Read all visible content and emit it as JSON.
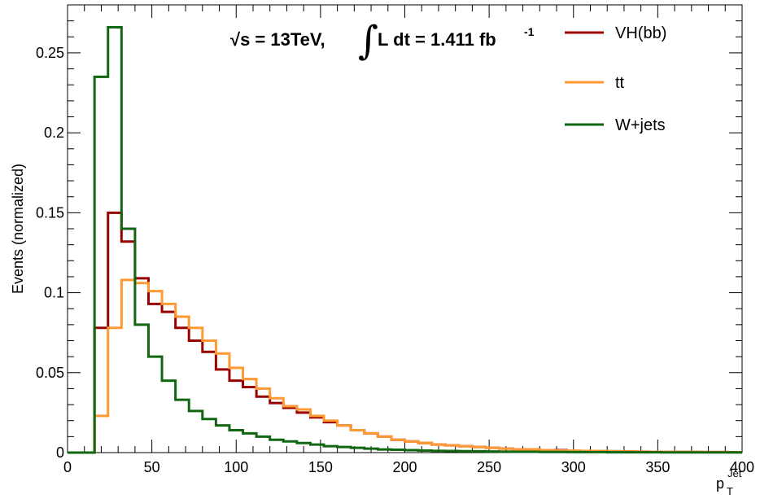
{
  "chart_data": {
    "type": "line",
    "title": "",
    "ylabel": "Events (normalized)",
    "xlabel": {
      "base": "p",
      "superscript": "Jet",
      "subscript": "T"
    },
    "xlim": [
      0,
      400
    ],
    "ylim": [
      0,
      0.28
    ],
    "grid": false,
    "legend_position": "top-right",
    "bin_edges": [
      0,
      8,
      16,
      24,
      32,
      40,
      48,
      56,
      64,
      72,
      80,
      88,
      96,
      104,
      112,
      120,
      128,
      136,
      144,
      152,
      160,
      168,
      176,
      184,
      192,
      200,
      208,
      216,
      224,
      232,
      240,
      248,
      256,
      264,
      272,
      280,
      288,
      296,
      304,
      312,
      320,
      328,
      336,
      344,
      352,
      360,
      368,
      376,
      384,
      392,
      400
    ],
    "x_ticks": [
      {
        "value": 0,
        "label": "0"
      },
      {
        "value": 50,
        "label": "50"
      },
      {
        "value": 100,
        "label": "100"
      },
      {
        "value": 150,
        "label": "150"
      },
      {
        "value": 200,
        "label": "200"
      },
      {
        "value": 250,
        "label": "250"
      },
      {
        "value": 300,
        "label": "300"
      },
      {
        "value": 350,
        "label": "350"
      },
      {
        "value": 400,
        "label": "400"
      }
    ],
    "y_ticks": [
      {
        "value": 0,
        "label": "0"
      },
      {
        "value": 0.05,
        "label": "0.05"
      },
      {
        "value": 0.1,
        "label": "0.1"
      },
      {
        "value": 0.15,
        "label": "0.15"
      },
      {
        "value": 0.2,
        "label": "0.2"
      },
      {
        "value": 0.25,
        "label": "0.25"
      }
    ],
    "series": [
      {
        "name": "VH(bb)",
        "color": "#990000",
        "values": [
          0,
          0,
          0.078,
          0.15,
          0.132,
          0.109,
          0.093,
          0.088,
          0.078,
          0.07,
          0.063,
          0.052,
          0.045,
          0.041,
          0.035,
          0.031,
          0.028,
          0.025,
          0.022,
          0.019,
          0.017,
          0.014,
          0.012,
          0.01,
          0.008,
          0.007,
          0.006,
          0.005,
          0.0045,
          0.004,
          0.0035,
          0.003,
          0.0025,
          0.002,
          0.002,
          0.0015,
          0.0015,
          0.001,
          0.001,
          0.001,
          0.0008,
          0.0007,
          0.0006,
          0.0005,
          0.0005,
          0.0004,
          0.0004,
          0.0003,
          0.0003,
          0.0002
        ]
      },
      {
        "name": "tt",
        "color": "#ff9933",
        "values": [
          0,
          0,
          0.023,
          0.078,
          0.108,
          0.106,
          0.101,
          0.093,
          0.085,
          0.078,
          0.07,
          0.062,
          0.053,
          0.046,
          0.04,
          0.034,
          0.029,
          0.027,
          0.023,
          0.02,
          0.017,
          0.014,
          0.012,
          0.01,
          0.008,
          0.007,
          0.006,
          0.005,
          0.0045,
          0.004,
          0.0035,
          0.003,
          0.0025,
          0.002,
          0.002,
          0.0015,
          0.0013,
          0.0012,
          0.001,
          0.001,
          0.0008,
          0.0007,
          0.0006,
          0.0005,
          0.0005,
          0.0004,
          0.0004,
          0.0003,
          0.0003,
          0.0002
        ]
      },
      {
        "name": "W+jets",
        "color": "#116611",
        "values": [
          0,
          0,
          0.235,
          0.266,
          0.14,
          0.08,
          0.06,
          0.045,
          0.033,
          0.026,
          0.021,
          0.017,
          0.014,
          0.012,
          0.01,
          0.008,
          0.007,
          0.006,
          0.005,
          0.004,
          0.0035,
          0.003,
          0.0025,
          0.002,
          0.0018,
          0.0015,
          0.0013,
          0.0011,
          0.001,
          0.0009,
          0.0008,
          0.0007,
          0.0006,
          0.0005,
          0.0005,
          0.0004,
          0.0004,
          0.0003,
          0.0003,
          0.0003,
          0.0002,
          0.0002,
          0.0002,
          0.0002,
          0.0001,
          0.0001,
          0.0001,
          0.0001,
          0.0001,
          0.0001
        ]
      }
    ],
    "annotation": {
      "sqrt_s": "√s = 13TeV,",
      "integral": "∫",
      "lumi": "L dt = 1.411 fb",
      "lumi_exp": "-1"
    }
  }
}
